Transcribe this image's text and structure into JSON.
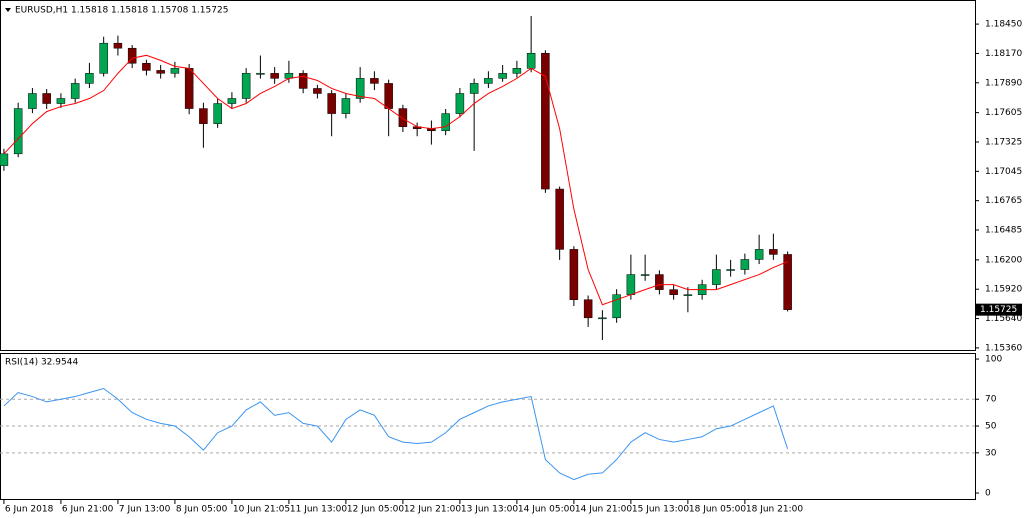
{
  "chart_data": [
    {
      "type": "candlestick",
      "title": "EURUSD,H1  1.15818 1.15818 1.15708 1.15725",
      "x": [
        0,
        4,
        8,
        12,
        16,
        20,
        24,
        28,
        32,
        36,
        40,
        44,
        48,
        52,
        56,
        60,
        64,
        68,
        72,
        76,
        80,
        84,
        88,
        92,
        96,
        100,
        104,
        108,
        112,
        116,
        120,
        124,
        128,
        132,
        136,
        140,
        144,
        148,
        152,
        156,
        160,
        164,
        168,
        172,
        176,
        180,
        184,
        188,
        192,
        196,
        200,
        204,
        208,
        212,
        216,
        220
      ],
      "open": [
        1.171,
        1.17212,
        1.17644,
        1.17788,
        1.17692,
        1.1774,
        1.17884,
        1.1798,
        1.18268,
        1.1822,
        1.18076,
        1.18008,
        1.1798,
        1.18028,
        1.17644,
        1.175,
        1.17692,
        1.1774,
        1.1798,
        1.1798,
        1.17932,
        1.1798,
        1.17836,
        1.17788,
        1.17596,
        1.1774,
        1.17932,
        1.17884,
        1.17644,
        1.17471,
        1.17452,
        1.17432,
        1.17596,
        1.17788,
        1.17884,
        1.17932,
        1.1798,
        1.18028,
        1.18172,
        1.16876,
        1.163,
        1.1582,
        1.15647,
        1.15647,
        1.15868,
        1.1606,
        1.1606,
        1.15916,
        1.15868,
        1.15868,
        1.15964,
        1.16108,
        1.16108,
        1.16204,
        1.163,
        1.16252
      ],
      "high": [
        1.1726,
        1.177,
        1.1784,
        1.1783,
        1.1779,
        1.1793,
        1.1808,
        1.1833,
        1.1834,
        1.1825,
        1.1811,
        1.1806,
        1.1809,
        1.1807,
        1.177,
        1.1774,
        1.178,
        1.1803,
        1.1815,
        1.1804,
        1.181,
        1.1801,
        1.1787,
        1.1782,
        1.1779,
        1.1804,
        1.18,
        1.1792,
        1.1768,
        1.1751,
        1.1753,
        1.1764,
        1.1784,
        1.1793,
        1.18,
        1.1806,
        1.181,
        1.18527,
        1.182,
        1.169,
        1.1633,
        1.1586,
        1.1572,
        1.1592,
        1.1625,
        1.1625,
        1.161,
        1.1596,
        1.1594,
        1.1601,
        1.1625,
        1.162,
        1.1626,
        1.1644,
        1.1645,
        1.1628
      ],
      "low": [
        1.1705,
        1.1718,
        1.176,
        1.1764,
        1.1765,
        1.177,
        1.1784,
        1.1795,
        1.1815,
        1.1803,
        1.1796,
        1.1793,
        1.1794,
        1.1759,
        1.1727,
        1.1746,
        1.1765,
        1.177,
        1.1793,
        1.1788,
        1.1789,
        1.1779,
        1.1774,
        1.1738,
        1.1755,
        1.177,
        1.1782,
        1.1738,
        1.1742,
        1.1738,
        1.173,
        1.1739,
        1.1756,
        1.1724,
        1.1784,
        1.179,
        1.1794,
        1.1799,
        1.1684,
        1.162,
        1.1576,
        1.1556,
        1.15436,
        1.156,
        1.1582,
        1.16,
        1.1587,
        1.1582,
        1.157,
        1.1582,
        1.1592,
        1.1604,
        1.1606,
        1.1616,
        1.162,
        1.15708
      ],
      "close": [
        1.17212,
        1.17644,
        1.17788,
        1.17692,
        1.1774,
        1.17884,
        1.1798,
        1.18268,
        1.1822,
        1.18076,
        1.18008,
        1.1798,
        1.18028,
        1.17644,
        1.175,
        1.17692,
        1.1774,
        1.1798,
        1.1798,
        1.17932,
        1.1798,
        1.17836,
        1.17788,
        1.17596,
        1.1774,
        1.17932,
        1.17884,
        1.17644,
        1.17471,
        1.17452,
        1.17432,
        1.17596,
        1.17788,
        1.17884,
        1.17932,
        1.1798,
        1.18028,
        1.18172,
        1.16876,
        1.163,
        1.1582,
        1.15647,
        1.15647,
        1.15868,
        1.1606,
        1.1606,
        1.15916,
        1.15868,
        1.15868,
        1.15964,
        1.16108,
        1.16108,
        1.16204,
        1.163,
        1.16252,
        1.15725
      ],
      "up_color": "#00a651",
      "down_color": "#7a0000",
      "overlay": {
        "color": "#ff0000",
        "values": [
          1.17212,
          1.17356,
          1.175,
          1.17615,
          1.17663,
          1.17692,
          1.1774,
          1.17816,
          1.1798,
          1.18124,
          1.18152,
          1.18104,
          1.18047,
          1.18028,
          1.17884,
          1.1774,
          1.17644,
          1.17692,
          1.17788,
          1.17855,
          1.17932,
          1.17951,
          1.17912,
          1.17836,
          1.17788,
          1.17759,
          1.1774,
          1.17644,
          1.17548,
          1.17471,
          1.17452,
          1.17471,
          1.17567,
          1.17692,
          1.17788,
          1.17855,
          1.17932,
          1.18028,
          1.17951,
          1.17452,
          1.16684,
          1.16108,
          1.15772,
          1.1582,
          1.15868,
          1.15916,
          1.15964,
          1.15964,
          1.15916,
          1.15916,
          1.15916,
          1.15964,
          1.16012,
          1.1606,
          1.16127,
          1.16184
        ]
      },
      "xlim": [
        -1.1,
        272.6
      ],
      "ylim": [
        1.1534,
        1.1868
      ],
      "yticks": [
        {
          "value": 1.1845,
          "label": "1.18450"
        },
        {
          "value": 1.1817,
          "label": "1.18170"
        },
        {
          "value": 1.1789,
          "label": "1.17890"
        },
        1.17605,
        1.17325,
        1.17045,
        1.16765,
        1.16485,
        {
          "value": 1.162,
          "label": "1.16200"
        },
        {
          "value": 1.1592,
          "label": "1.15920"
        },
        {
          "value": 1.1564,
          "label": "1.15640"
        },
        {
          "value": 1.1536,
          "label": "1.15360"
        }
      ]
    },
    {
      "type": "line",
      "title": "RSI(14) 32.9544",
      "x": [
        0,
        4,
        8,
        12,
        16,
        20,
        24,
        28,
        32,
        36,
        40,
        44,
        48,
        52,
        56,
        60,
        64,
        68,
        72,
        76,
        80,
        84,
        88,
        92,
        96,
        100,
        104,
        108,
        112,
        116,
        120,
        124,
        128,
        132,
        136,
        140,
        144,
        148,
        152,
        156,
        160,
        164,
        168,
        172,
        176,
        180,
        184,
        188,
        192,
        196,
        200,
        204,
        208,
        212,
        216,
        220
      ],
      "values": [
        65,
        75,
        72,
        68,
        70,
        72,
        75,
        78,
        70,
        60,
        55,
        52,
        50,
        42,
        32,
        45,
        50,
        62,
        68,
        58,
        60,
        52,
        50,
        38,
        55,
        62,
        58,
        42,
        38,
        37,
        38,
        45,
        55,
        60,
        65,
        68,
        70,
        72,
        25,
        15,
        10,
        14,
        15,
        25,
        38,
        45,
        40,
        38,
        40,
        42,
        48,
        50,
        55,
        60,
        65,
        32.9544
      ],
      "color": "#3a94f0",
      "levels": [
        30,
        50,
        70
      ],
      "xlim": [
        -1.1,
        272.6
      ],
      "ylim": [
        -5.2,
        104.5
      ],
      "yticks": [
        0,
        30,
        50,
        70,
        100
      ],
      "xticks": [
        {
          "value": 0,
          "label": "6 Jun 2018"
        },
        {
          "value": 16,
          "label": "6 Jun 21:00"
        },
        {
          "value": 32,
          "label": "7 Jun 13:00"
        },
        {
          "value": 48,
          "label": "8 Jun 05:00"
        },
        {
          "value": 64,
          "label": "10 Jun 21:05"
        },
        {
          "value": 80,
          "label": "11 Jun 13:00"
        },
        {
          "value": 96,
          "label": "12 Jun 05:00"
        },
        {
          "value": 112,
          "label": "12 Jun 21:00"
        },
        {
          "value": 128,
          "label": "13 Jun 13:00"
        },
        {
          "value": 144,
          "label": "14 Jun 05:00"
        },
        {
          "value": 160,
          "label": "14 Jun 21:00"
        },
        {
          "value": 176,
          "label": "15 Jun 13:00"
        },
        {
          "value": 192,
          "label": "18 Jun 05:00"
        },
        {
          "value": 208,
          "label": "18 Jun 21:00"
        }
      ]
    }
  ]
}
